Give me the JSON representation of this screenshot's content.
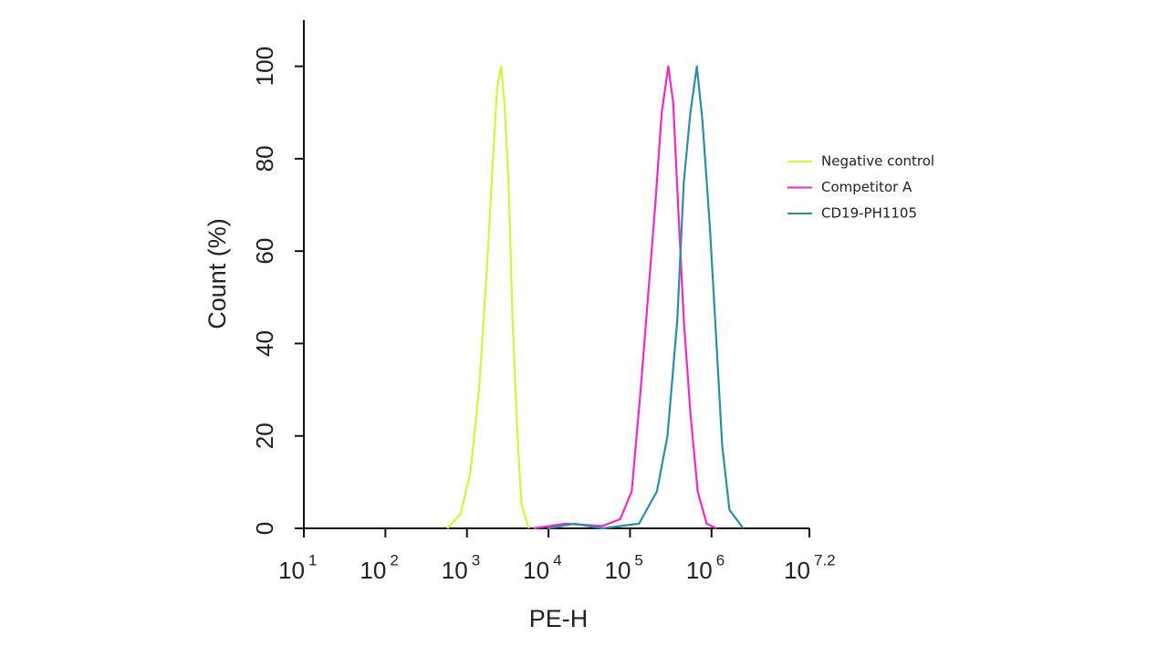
{
  "chart_data": {
    "type": "line",
    "x_label": "PE-H",
    "y_label": "Count (%)",
    "xlog": true,
    "xlim": [
      10,
      15848932
    ],
    "xticks": [
      {
        "value": 10,
        "label": "10",
        "superscript": "1"
      },
      {
        "value": 100,
        "label": "10",
        "superscript": "2"
      },
      {
        "value": 1000,
        "label": "10",
        "superscript": "3"
      },
      {
        "value": 10000,
        "label": "10",
        "superscript": "4"
      },
      {
        "value": 100000,
        "label": "10",
        "superscript": "5"
      },
      {
        "value": 1000000,
        "label": "10",
        "superscript": "6"
      },
      {
        "value": 15848932,
        "label": "10",
        "superscript": "7.2"
      }
    ],
    "ylim": [
      0,
      110
    ],
    "yticks": [
      0,
      20,
      40,
      60,
      80,
      100
    ],
    "legend_position": "right",
    "series": [
      {
        "name": "Negative control",
        "color": "#d4f53c",
        "x": [
          575,
          830,
          1100,
          1410,
          1740,
          2090,
          2340,
          2630,
          2880,
          3240,
          3630,
          4170,
          4680,
          5750
        ],
        "values": [
          0,
          3,
          12,
          30,
          55,
          80,
          95,
          100,
          92,
          75,
          45,
          20,
          5,
          0
        ]
      },
      {
        "name": "Competitor A",
        "color": "#f227c8",
        "x": [
          6600,
          16200,
          45700,
          75900,
          105000,
          135000,
          166000,
          204000,
          245000,
          295000,
          339000,
          389000,
          457000,
          550000,
          676000,
          871000,
          1150000
        ],
        "values": [
          0,
          1,
          0.5,
          2,
          8,
          30,
          50,
          70,
          90,
          100,
          92,
          70,
          45,
          25,
          8,
          1,
          0
        ]
      },
      {
        "name": "CD19-PH1105",
        "color": "#2b8ea6",
        "x": [
          9770,
          20900,
          45700,
          129000,
          214000,
          288000,
          380000,
          457000,
          550000,
          661000,
          776000,
          955000,
          1150000,
          1350000,
          1660000,
          2450000
        ],
        "values": [
          0,
          1,
          0,
          1,
          8,
          20,
          45,
          75,
          90,
          100,
          88,
          65,
          40,
          18,
          4,
          0
        ]
      }
    ]
  }
}
